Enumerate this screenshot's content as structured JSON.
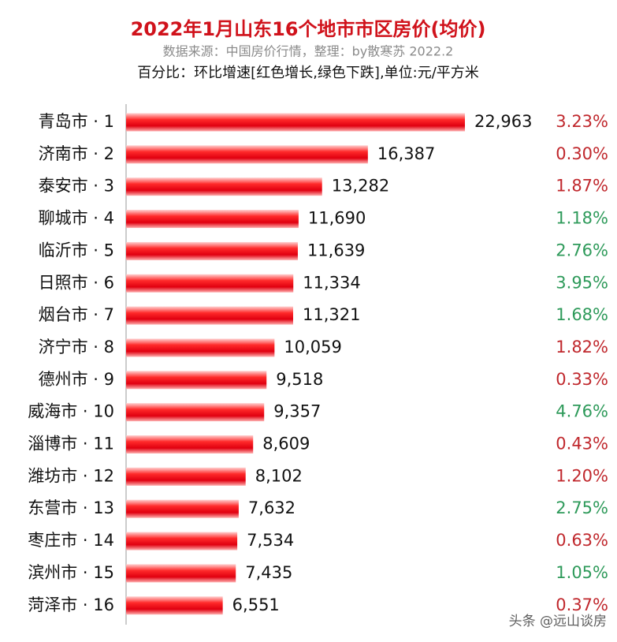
{
  "chart_data": {
    "type": "bar",
    "orientation": "horizontal",
    "title": "2022年1月山东16个地市市区房价(均价)",
    "subtitle": "数据来源：中国房价行情，整理：by散寒苏  2022.2",
    "note": "百分比：环比增速[红色增长,绿色下跌],单位:元/平方米",
    "watermark": "头条 @远山谈房",
    "categories": [
      "青岛市 · 1",
      "济南市 · 2",
      "泰安市 · 3",
      "聊城市 · 4",
      "临沂市 · 5",
      "日照市 · 6",
      "烟台市 · 7",
      "济宁市 · 8",
      "德州市 · 9",
      "威海市 · 10",
      "淄博市 · 11",
      "潍坊市 · 12",
      "东营市 · 13",
      "枣庄市 · 14",
      "滨州市 · 15",
      "菏泽市 · 16"
    ],
    "values": [
      22963,
      16387,
      13282,
      11690,
      11639,
      11334,
      11321,
      10059,
      9518,
      9357,
      8609,
      8102,
      7632,
      7534,
      7435,
      6551
    ],
    "value_labels": [
      "22,963",
      "16,387",
      "13,282",
      "11,690",
      "11,639",
      "11,334",
      "11,321",
      "10,059",
      "9,518",
      "9,357",
      "8,609",
      "8,102",
      "7,632",
      "7,534",
      "7,435",
      "6,551"
    ],
    "color": "#e8161c",
    "change": {
      "values": [
        3.23,
        0.3,
        1.87,
        1.18,
        2.76,
        3.95,
        1.68,
        1.82,
        0.33,
        4.76,
        0.43,
        1.2,
        2.75,
        0.63,
        1.05,
        0.37
      ],
      "value_labels": [
        "3.23%",
        "0.30%",
        "1.87%",
        "1.18%",
        "2.76%",
        "3.95%",
        "1.68%",
        "1.82%",
        "0.33%",
        "4.76%",
        "0.43%",
        "1.20%",
        "2.75%",
        "0.63%",
        "1.05%",
        "0.37%"
      ],
      "colors": [
        "#c0282d",
        "#c0282d",
        "#c0282d",
        "#2e9a5a",
        "#2e9a5a",
        "#2e9a5a",
        "#2e9a5a",
        "#c0282d",
        "#c0282d",
        "#2e9a5a",
        "#c0282d",
        "#c0282d",
        "#2e9a5a",
        "#c0282d",
        "#2e9a5a",
        "#c0282d"
      ]
    }
  }
}
